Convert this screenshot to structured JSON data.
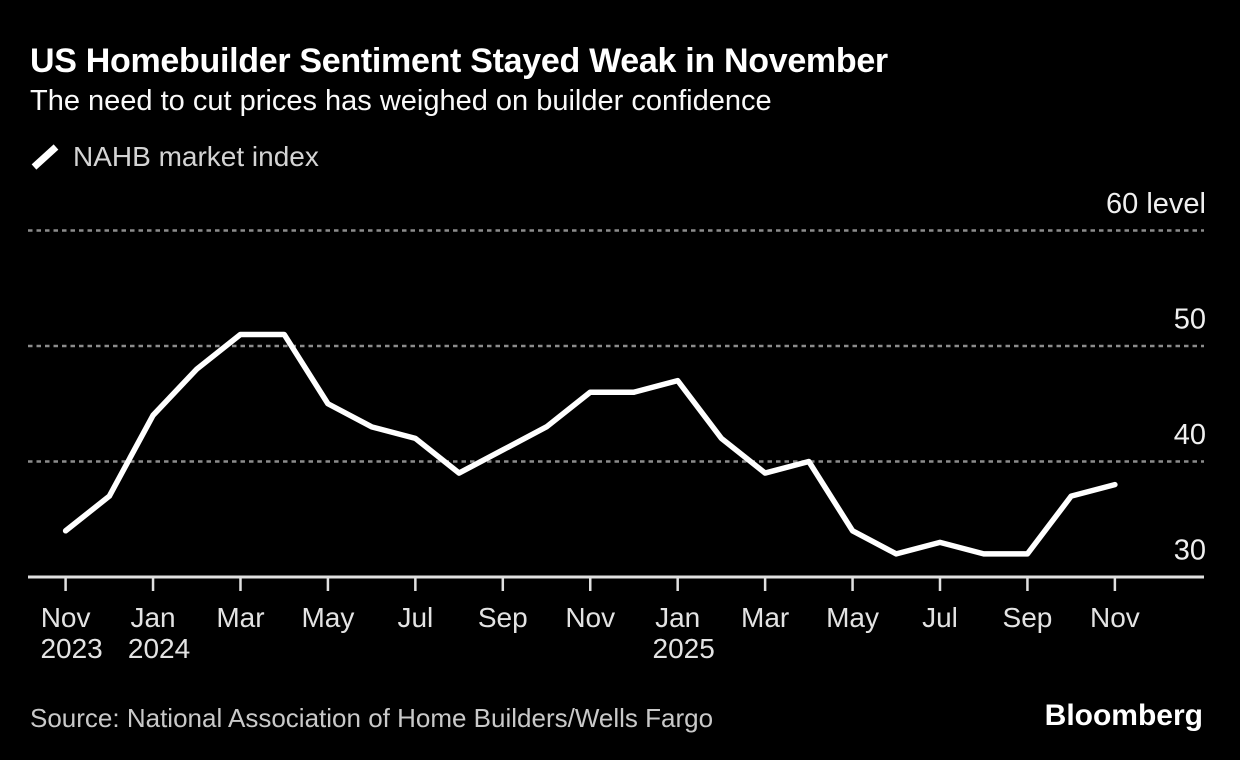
{
  "header": {
    "title": "US Homebuilder Sentiment Stayed Weak in November",
    "subtitle": "The need to cut prices has weighed on builder confidence"
  },
  "legend": {
    "label": "NAHB market index"
  },
  "colors": {
    "background": "#000000",
    "line": "#ffffff",
    "gridline": "#8c8c8c",
    "axis": "#e0e0e0",
    "axis_label": "#f0f0f0",
    "tick_label": "#e3e3e3",
    "legend_text": "#d4d4d4",
    "source_text": "#c9c9c9",
    "brand_text": "#ffffff"
  },
  "chart_data": {
    "type": "line",
    "title": "US Homebuilder Sentiment Stayed Weak in November",
    "subtitle": "The need to cut prices has weighed on builder confidence",
    "legend_position": "top-left",
    "grid": "horizontal-dashed",
    "ylim": [
      30,
      62
    ],
    "ylabel": "level",
    "series": [
      {
        "name": "NAHB market index",
        "color": "#ffffff",
        "months": [
          "Nov 2023",
          "Dec 2023",
          "Jan 2024",
          "Feb 2024",
          "Mar 2024",
          "Apr 2024",
          "May 2024",
          "Jun 2024",
          "Jul 2024",
          "Aug 2024",
          "Sep 2024",
          "Oct 2024",
          "Nov 2024",
          "Dec 2024",
          "Jan 2025",
          "Feb 2025",
          "Mar 2025",
          "Apr 2025",
          "May 2025",
          "Jun 2025",
          "Jul 2025",
          "Aug 2025",
          "Sep 2025",
          "Oct 2025",
          "Nov 2025"
        ],
        "values": [
          34,
          37,
          44,
          48,
          51,
          51,
          45,
          43,
          42,
          39,
          41,
          43,
          46,
          46,
          47,
          42,
          39,
          40,
          34,
          32,
          33,
          32,
          32,
          37,
          38
        ]
      }
    ],
    "x_ticks": [
      {
        "index": 0,
        "label": "Nov",
        "year": "2023"
      },
      {
        "index": 2,
        "label": "Jan",
        "year": "2024"
      },
      {
        "index": 4,
        "label": "Mar"
      },
      {
        "index": 6,
        "label": "May"
      },
      {
        "index": 8,
        "label": "Jul"
      },
      {
        "index": 10,
        "label": "Sep"
      },
      {
        "index": 12,
        "label": "Nov"
      },
      {
        "index": 14,
        "label": "Jan",
        "year": "2025"
      },
      {
        "index": 16,
        "label": "Mar"
      },
      {
        "index": 18,
        "label": "May"
      },
      {
        "index": 20,
        "label": "Jul"
      },
      {
        "index": 22,
        "label": "Sep"
      },
      {
        "index": 24,
        "label": "Nov"
      }
    ],
    "y_gridlines": [
      {
        "value": 60,
        "label": "60 level",
        "style": "dashed"
      },
      {
        "value": 50,
        "label": "50",
        "style": "dashed"
      },
      {
        "value": 40,
        "label": "40",
        "style": "dashed"
      },
      {
        "value": 30,
        "label": "30",
        "style": "baseline"
      }
    ]
  },
  "footer": {
    "source": "Source: National Association of Home Builders/Wells Fargo",
    "brand": "Bloomberg"
  }
}
